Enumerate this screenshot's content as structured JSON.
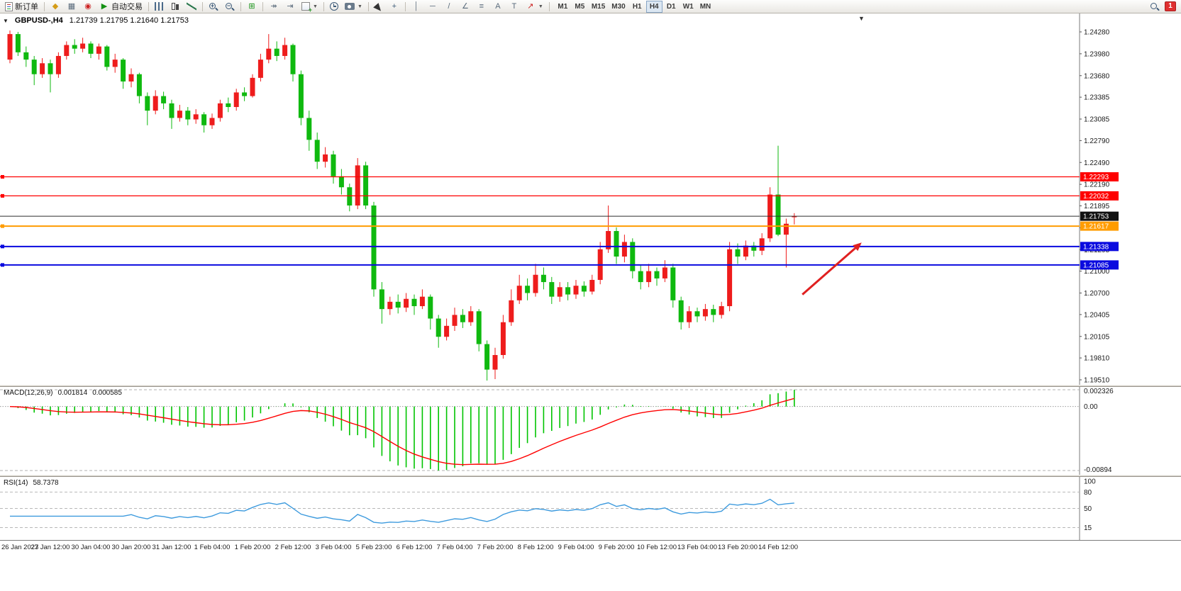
{
  "app": {
    "toolbar": {
      "new_order": "新订单",
      "autotrading": "自动交易",
      "timeframes": [
        "M1",
        "M5",
        "M15",
        "M30",
        "H1",
        "H4",
        "D1",
        "W1",
        "MN"
      ],
      "active_timeframe": "H4",
      "notification_badge": "1",
      "icons": {
        "metaeditor": "◆",
        "strategy_tester": "▦",
        "community": "◉",
        "autotrading_play": "▶",
        "tile_windows": "⊞",
        "auto_scroll": "↠",
        "chart_shift": "⇥",
        "caret": "▼",
        "crosshair": "+",
        "vertical_line": "│",
        "horizontal_line": "─",
        "trendline": "/",
        "channel": "∠",
        "fibonacci": "≡",
        "text": "A",
        "text_label": "T",
        "arrows_tool": "↗",
        "zoom_in_sign": "+",
        "zoom_out_sign": "−",
        "one_click_arrow": "▼",
        "chart_end_marker": "▼"
      }
    }
  },
  "chart_data": {
    "type": "candlestick",
    "symbol": "GBPUSD-",
    "period": "H4",
    "title_text": "GBPUSD-,H4",
    "ohlc_text": "1.21739 1.21795 1.21640 1.21753",
    "legend_position": "top-left",
    "grid": false,
    "label_step": 5,
    "price_axis": {
      "min": 1.1951,
      "max": 1.2428,
      "labels": [
        "1.24280",
        "1.23980",
        "1.23680",
        "1.23385",
        "1.23085",
        "1.22790",
        "1.22490",
        "1.22190",
        "1.21895",
        "1.21595",
        "1.21295",
        "1.21000",
        "1.20700",
        "1.20405",
        "1.20105",
        "1.19810",
        "1.19510"
      ]
    },
    "time_labels": [
      "26 Jan 2023",
      "27 Jan 12:00",
      "30 Jan 04:00",
      "30 Jan 20:00",
      "31 Jan 12:00",
      "1 Feb 04:00",
      "1 Feb 20:00",
      "2 Feb 12:00",
      "3 Feb 04:00",
      "5 Feb 23:00",
      "6 Feb 12:00",
      "7 Feb 04:00",
      "7 Feb 20:00",
      "8 Feb 12:00",
      "9 Feb 04:00",
      "9 Feb 20:00",
      "10 Feb 12:00",
      "13 Feb 04:00",
      "13 Feb 20:00",
      "14 Feb 12:00"
    ],
    "candles": [
      [
        1.239,
        1.243,
        1.2385,
        1.2425
      ],
      [
        1.2425,
        1.2428,
        1.2395,
        1.24
      ],
      [
        1.24,
        1.2408,
        1.238,
        1.239
      ],
      [
        1.239,
        1.2395,
        1.2355,
        1.237
      ],
      [
        1.237,
        1.2392,
        1.2365,
        1.2385
      ],
      [
        1.2385,
        1.239,
        1.2345,
        1.237
      ],
      [
        1.237,
        1.24,
        1.2365,
        1.2395
      ],
      [
        1.2395,
        1.2415,
        1.239,
        1.241
      ],
      [
        1.241,
        1.2418,
        1.2398,
        1.2405
      ],
      [
        1.2405,
        1.242,
        1.24,
        1.2412
      ],
      [
        1.2412,
        1.2415,
        1.2392,
        1.2398
      ],
      [
        1.2398,
        1.2412,
        1.239,
        1.2408
      ],
      [
        1.2408,
        1.241,
        1.2375,
        1.238
      ],
      [
        1.238,
        1.2398,
        1.2372,
        1.239
      ],
      [
        1.239,
        1.2392,
        1.235,
        1.236
      ],
      [
        1.236,
        1.2378,
        1.2352,
        1.237
      ],
      [
        1.237,
        1.2372,
        1.233,
        1.234
      ],
      [
        1.234,
        1.2345,
        1.23,
        1.232
      ],
      [
        1.232,
        1.2348,
        1.2315,
        1.234
      ],
      [
        1.234,
        1.2346,
        1.2322,
        1.233
      ],
      [
        1.233,
        1.2335,
        1.2295,
        1.231
      ],
      [
        1.231,
        1.2328,
        1.2305,
        1.232
      ],
      [
        1.232,
        1.2325,
        1.23,
        1.2308
      ],
      [
        1.2308,
        1.2322,
        1.2302,
        1.2315
      ],
      [
        1.2315,
        1.2318,
        1.229,
        1.23
      ],
      [
        1.23,
        1.2316,
        1.2295,
        1.231
      ],
      [
        1.231,
        1.2335,
        1.2305,
        1.233
      ],
      [
        1.233,
        1.2338,
        1.2318,
        1.2325
      ],
      [
        1.2325,
        1.235,
        1.232,
        1.2345
      ],
      [
        1.2345,
        1.2352,
        1.2333,
        1.234
      ],
      [
        1.234,
        1.237,
        1.2338,
        1.2365
      ],
      [
        1.2365,
        1.2398,
        1.236,
        1.239
      ],
      [
        1.239,
        1.2425,
        1.2385,
        1.2405
      ],
      [
        1.2405,
        1.2415,
        1.2388,
        1.2395
      ],
      [
        1.2395,
        1.242,
        1.239,
        1.241
      ],
      [
        1.241,
        1.2412,
        1.236,
        1.237
      ],
      [
        1.237,
        1.2375,
        1.23,
        1.231
      ],
      [
        1.231,
        1.232,
        1.2265,
        1.228
      ],
      [
        1.228,
        1.229,
        1.224,
        1.225
      ],
      [
        1.225,
        1.227,
        1.2242,
        1.226
      ],
      [
        1.226,
        1.2265,
        1.222,
        1.223
      ],
      [
        1.223,
        1.224,
        1.2205,
        1.2215
      ],
      [
        1.2215,
        1.222,
        1.2182,
        1.219
      ],
      [
        1.219,
        1.2255,
        1.2185,
        1.2245
      ],
      [
        1.2245,
        1.225,
        1.2185,
        1.219
      ],
      [
        1.219,
        1.2195,
        1.2065,
        1.2075
      ],
      [
        1.2075,
        1.2085,
        1.2028,
        1.2048
      ],
      [
        1.2048,
        1.2065,
        1.204,
        1.2058
      ],
      [
        1.2058,
        1.2068,
        1.2042,
        1.205
      ],
      [
        1.205,
        1.207,
        1.2044,
        1.2062
      ],
      [
        1.2062,
        1.2068,
        1.204,
        1.2052
      ],
      [
        1.2052,
        1.2075,
        1.2048,
        1.2065
      ],
      [
        1.2065,
        1.2068,
        1.202,
        1.2035
      ],
      [
        1.2035,
        1.204,
        1.1995,
        1.201
      ],
      [
        1.201,
        1.2035,
        1.2005,
        1.2025
      ],
      [
        1.2025,
        1.205,
        1.2018,
        1.204
      ],
      [
        1.204,
        1.2048,
        1.2022,
        1.203
      ],
      [
        1.203,
        1.2052,
        1.2025,
        1.2045
      ],
      [
        1.2045,
        1.2048,
        1.199,
        1.2
      ],
      [
        1.2,
        1.2005,
        1.195,
        1.1965
      ],
      [
        1.1965,
        1.1995,
        1.1952,
        1.1985
      ],
      [
        1.1985,
        1.204,
        1.198,
        1.203
      ],
      [
        1.203,
        1.2075,
        1.2025,
        1.206
      ],
      [
        1.206,
        1.2095,
        1.2055,
        1.208
      ],
      [
        1.208,
        1.209,
        1.206,
        1.207
      ],
      [
        1.207,
        1.211,
        1.2065,
        1.2095
      ],
      [
        1.2095,
        1.2105,
        1.2075,
        1.2085
      ],
      [
        1.2085,
        1.2092,
        1.2055,
        1.2065
      ],
      [
        1.2065,
        1.2085,
        1.2058,
        1.2078
      ],
      [
        1.2078,
        1.2085,
        1.206,
        1.2068
      ],
      [
        1.2068,
        1.2088,
        1.2062,
        1.208
      ],
      [
        1.208,
        1.2086,
        1.2065,
        1.2072
      ],
      [
        1.2072,
        1.2095,
        1.2068,
        1.2088
      ],
      [
        1.2088,
        1.214,
        1.2082,
        1.213
      ],
      [
        1.213,
        1.219,
        1.2125,
        1.2155
      ],
      [
        1.2155,
        1.216,
        1.211,
        1.212
      ],
      [
        1.212,
        1.215,
        1.2112,
        1.214
      ],
      [
        1.214,
        1.2145,
        1.209,
        1.21
      ],
      [
        1.21,
        1.2108,
        1.2075,
        1.2085
      ],
      [
        1.2085,
        1.211,
        1.2078,
        1.21
      ],
      [
        1.21,
        1.2105,
        1.208,
        1.209
      ],
      [
        1.209,
        1.2115,
        1.2085,
        1.2105
      ],
      [
        1.2105,
        1.211,
        1.205,
        1.206
      ],
      [
        1.206,
        1.2065,
        1.202,
        1.203
      ],
      [
        1.203,
        1.2052,
        1.2022,
        1.2045
      ],
      [
        1.2045,
        1.205,
        1.203,
        1.2038
      ],
      [
        1.2038,
        1.2055,
        1.2032,
        1.2048
      ],
      [
        1.2048,
        1.2054,
        1.203,
        1.204
      ],
      [
        1.204,
        1.2058,
        1.2035,
        1.2052
      ],
      [
        1.2052,
        1.214,
        1.2045,
        1.213
      ],
      [
        1.213,
        1.2138,
        1.211,
        1.212
      ],
      [
        1.212,
        1.2142,
        1.2115,
        1.2135
      ],
      [
        1.2135,
        1.214,
        1.212,
        1.2128
      ],
      [
        1.2128,
        1.2152,
        1.2122,
        1.2145
      ],
      [
        1.2145,
        1.2215,
        1.214,
        1.2205
      ],
      [
        1.2205,
        1.2272,
        1.2148,
        1.215
      ],
      [
        1.215,
        1.2172,
        1.2105,
        1.2165
      ],
      [
        1.21739,
        1.21795,
        1.2164,
        1.21753
      ]
    ],
    "hlines": [
      {
        "label": "1.22293",
        "price": 1.22293,
        "color": "#fe0000",
        "width": 1.2,
        "handle": true
      },
      {
        "label": "1.22032",
        "price": 1.22032,
        "color": "#fe0000",
        "width": 1.2,
        "handle": true
      },
      {
        "label": "1.21753",
        "price": 1.21753,
        "color": "#2e2e2e",
        "width": 1,
        "handle": false,
        "badge_bg": "#111111"
      },
      {
        "label": "1.21617",
        "price": 1.21617,
        "color": "#ff9c00",
        "width": 2,
        "handle": true
      },
      {
        "label": "1.21338",
        "price": 1.21338,
        "color": "#0a0adf",
        "width": 2,
        "handle": true
      },
      {
        "label": "1.21085",
        "price": 1.21085,
        "color": "#0a0adf",
        "width": 2,
        "handle": true
      }
    ],
    "trend_arrow": {
      "color": "#e02020",
      "from": {
        "index": 98,
        "price": 1.2068
      },
      "to": {
        "index": 105,
        "price": 1.2136
      }
    },
    "indicators": {
      "macd": {
        "name": "MACD(12,26,9)",
        "value_main": "0.001814",
        "value_signal": "0.000585",
        "fast": 12,
        "slow": 26,
        "signal": 9,
        "axis_max": "0.002326",
        "axis_zero": "0.00",
        "axis_min": "-0.00894"
      },
      "rsi": {
        "name": "RSI(14)",
        "value": "58.7378",
        "period": 14,
        "levels": [
          80,
          50,
          15
        ],
        "axis_labels": [
          "100",
          "80",
          "50",
          "15"
        ]
      }
    },
    "colors": {
      "up": "#ee1c1c",
      "down": "#0fb90f",
      "macd_hist": "#00c400",
      "macd_signal": "#ff0000",
      "rsi": "#3e9bde",
      "axis_text": "#1a1a1a"
    }
  }
}
